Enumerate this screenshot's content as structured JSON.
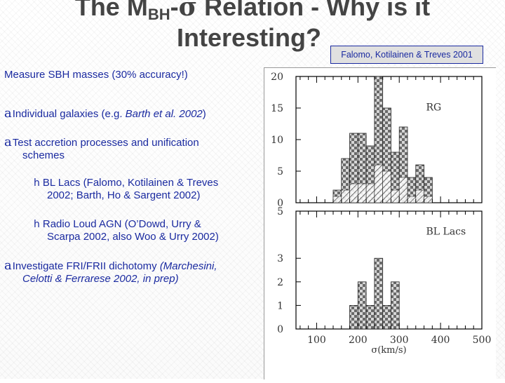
{
  "title": {
    "line1_pre": "The M",
    "line1_sub": "BH",
    "line1_dash": "-",
    "line1_sigma": "σ",
    "line1_post": " Relation - Why is it",
    "line2": "Interesting?"
  },
  "credit": "Falomo, Kotilainen & Treves 2001",
  "intro": "Measure SBH masses  (30% accuracy!)",
  "bullets": {
    "mark": "a",
    "b1": {
      "pre": "Individual galaxies (e.g. ",
      "italic": "Barth et al. 2002",
      "post": ")"
    },
    "b2": {
      "line1": "Test accretion processes and unification",
      "line2": "schemes"
    },
    "s_mark": "h",
    "s1": {
      "line1": "BL Lacs (Falomo, Kotilainen & Treves",
      "line2": "2002; Barth, Ho & Sargent 2002)"
    },
    "s2": {
      "line1": "Radio Loud AGN (O’Dowd, Urry &",
      "line2": "Scarpa 2002, also Woo & Urry 2002)"
    },
    "b3": {
      "line1_pre": "Investigate FRI/FRII dichotomy ",
      "line1_italic": "(Marchesini,",
      "line2": "Celotti & Ferrarese 2002, in prep)"
    }
  },
  "chart_data": [
    {
      "type": "bar",
      "label": "RG",
      "x": [
        150,
        170,
        190,
        210,
        230,
        250,
        270,
        290,
        310,
        330,
        350,
        370,
        390
      ],
      "values": [
        2,
        7,
        11,
        11,
        9,
        20,
        15,
        8,
        12,
        4,
        6,
        4,
        0
      ],
      "ylim": [
        0,
        20
      ],
      "yticks": [
        "0",
        "5",
        "10",
        "15",
        "20"
      ]
    },
    {
      "type": "bar",
      "label": "BL Lacs",
      "x": [
        190,
        210,
        230,
        250,
        270,
        290,
        310
      ],
      "values": [
        1,
        2,
        1,
        3,
        1,
        2,
        0
      ],
      "ylim": [
        0,
        5
      ],
      "yticks": [
        "0",
        "1",
        "2",
        "3",
        "5"
      ],
      "xticks": [
        "100",
        "200",
        "300",
        "400",
        "500"
      ],
      "xlabel": "σ(km/s)",
      "xlim": [
        50,
        500
      ]
    }
  ]
}
